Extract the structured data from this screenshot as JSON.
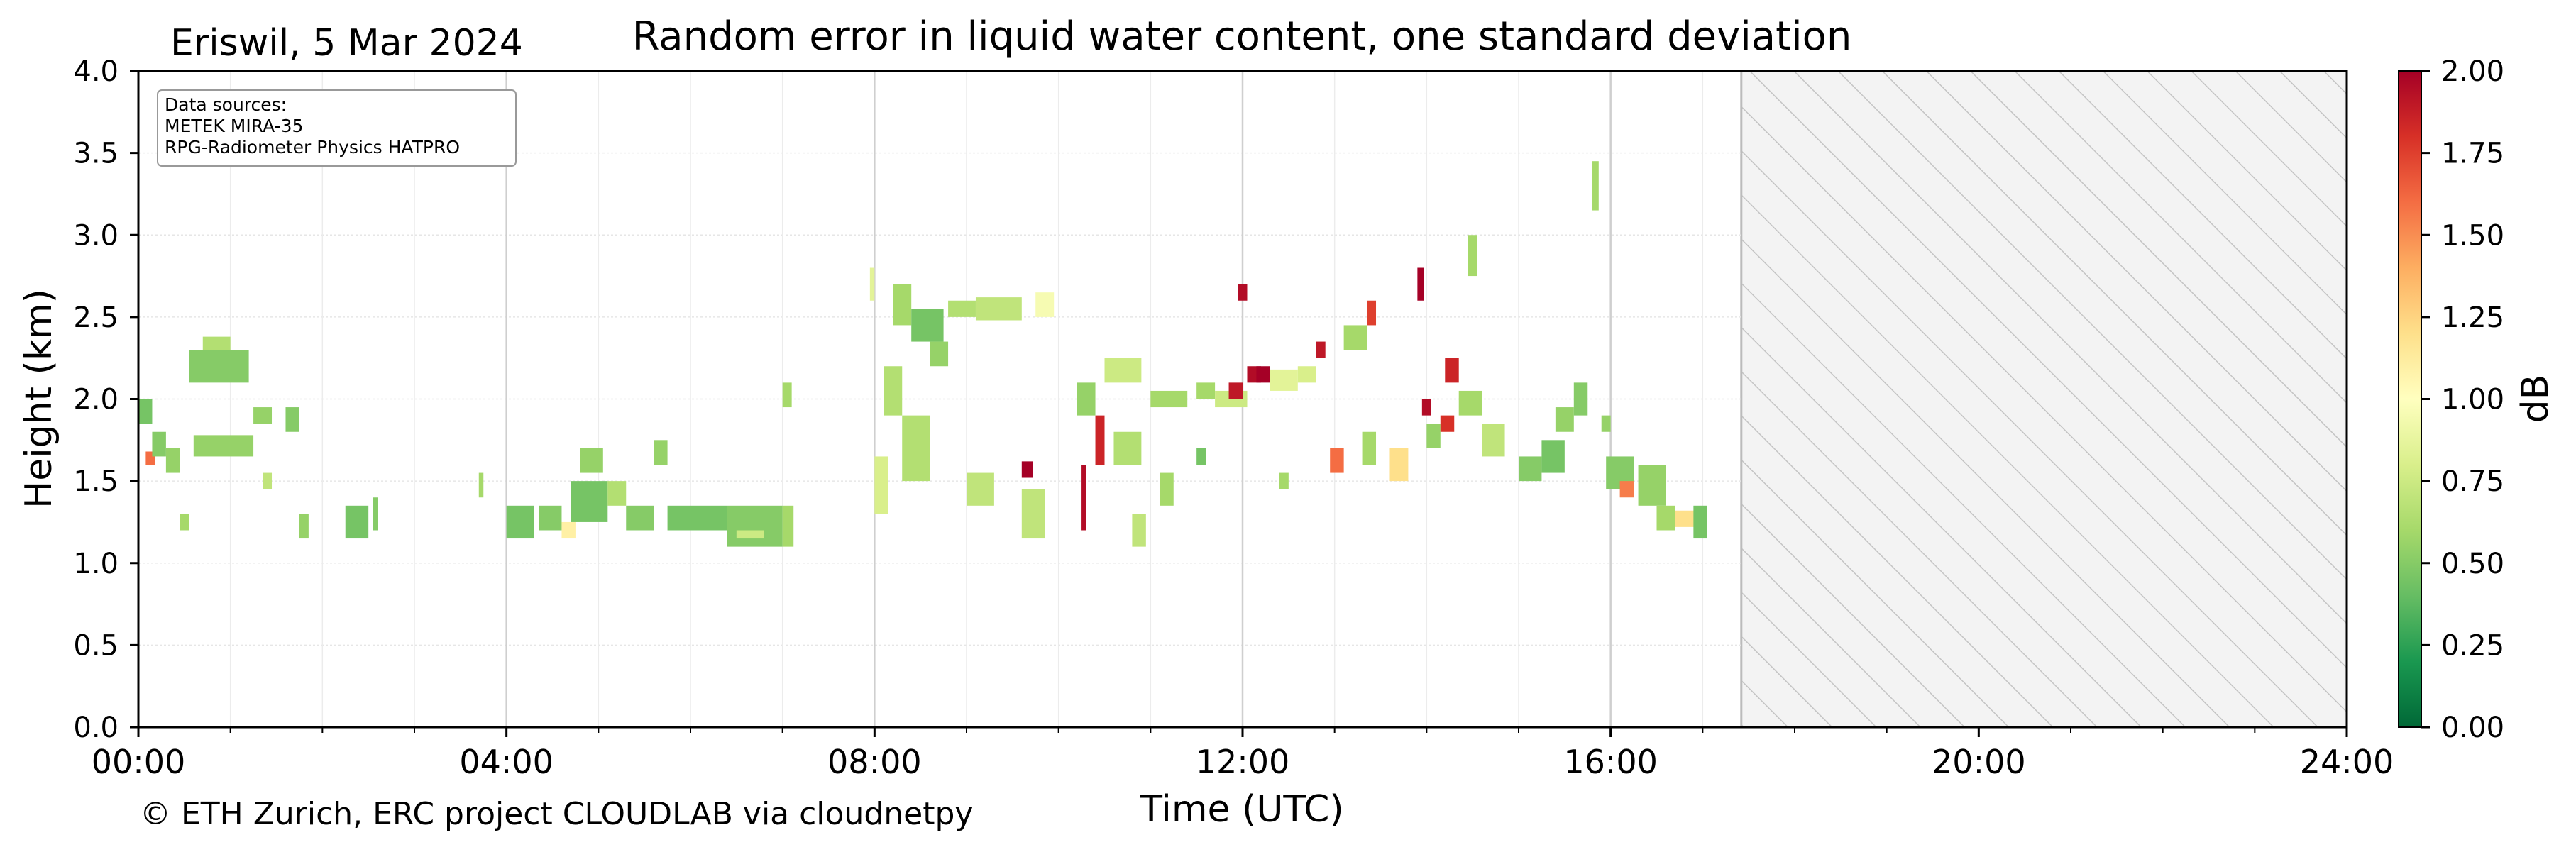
{
  "header": {
    "site_date": "Eriswil, 5 Mar 2024",
    "title": "Random error in liquid water content, one standard deviation"
  },
  "sources_box": {
    "heading": "Data sources:",
    "lines": [
      "METEK MIRA-35",
      "RPG-Radiometer Physics HATPRO"
    ]
  },
  "footer": {
    "copyright": "© ETH Zurich, ERC project CLOUDLAB via cloudnetpy"
  },
  "chart_data": {
    "type": "heatmap",
    "title": "Random error in liquid water content, one standard deviation",
    "xlabel": "Time (UTC)",
    "ylabel": "Height (km)",
    "xlim": [
      0,
      24
    ],
    "ylim": [
      0,
      4
    ],
    "x_ticks": [
      "00:00",
      "04:00",
      "08:00",
      "12:00",
      "16:00",
      "20:00",
      "24:00"
    ],
    "y_ticks": [
      "0.0",
      "0.5",
      "1.0",
      "1.5",
      "2.0",
      "2.5",
      "3.0",
      "3.5",
      "4.0"
    ],
    "colorbar": {
      "label": "dB",
      "range": [
        0,
        2
      ],
      "ticks": [
        "0.00",
        "0.25",
        "0.50",
        "0.75",
        "1.00",
        "1.25",
        "1.50",
        "1.75",
        "2.00"
      ],
      "colormap": "RdYlGn_r"
    },
    "no_data_after_hours": 17.42,
    "grid": true,
    "cells": [
      {
        "t0": 0.0,
        "t1": 0.15,
        "h0": 1.85,
        "h1": 2.0,
        "v": 0.45
      },
      {
        "t0": 0.08,
        "t1": 0.18,
        "h0": 1.6,
        "h1": 1.68,
        "v": 1.6
      },
      {
        "t0": 0.15,
        "t1": 0.3,
        "h0": 1.65,
        "h1": 1.8,
        "v": 0.5
      },
      {
        "t0": 0.3,
        "t1": 0.45,
        "h0": 1.55,
        "h1": 1.7,
        "v": 0.55
      },
      {
        "t0": 0.45,
        "t1": 0.55,
        "h0": 1.2,
        "h1": 1.3,
        "v": 0.6
      },
      {
        "t0": 0.55,
        "t1": 1.2,
        "h0": 2.1,
        "h1": 2.3,
        "v": 0.5
      },
      {
        "t0": 0.6,
        "t1": 1.25,
        "h0": 1.65,
        "h1": 1.78,
        "v": 0.55
      },
      {
        "t0": 0.7,
        "t1": 1.0,
        "h0": 2.3,
        "h1": 2.38,
        "v": 0.65
      },
      {
        "t0": 1.25,
        "t1": 1.45,
        "h0": 1.85,
        "h1": 1.95,
        "v": 0.55
      },
      {
        "t0": 1.35,
        "t1": 1.45,
        "h0": 1.45,
        "h1": 1.55,
        "v": 0.7
      },
      {
        "t0": 1.6,
        "t1": 1.75,
        "h0": 1.8,
        "h1": 1.95,
        "v": 0.5
      },
      {
        "t0": 1.75,
        "t1": 1.85,
        "h0": 1.15,
        "h1": 1.3,
        "v": 0.55
      },
      {
        "t0": 2.25,
        "t1": 2.5,
        "h0": 1.15,
        "h1": 1.35,
        "v": 0.45
      },
      {
        "t0": 2.55,
        "t1": 2.6,
        "h0": 1.2,
        "h1": 1.4,
        "v": 0.5
      },
      {
        "t0": 3.7,
        "t1": 3.75,
        "h0": 1.4,
        "h1": 1.55,
        "v": 0.6
      },
      {
        "t0": 4.0,
        "t1": 4.3,
        "h0": 1.15,
        "h1": 1.35,
        "v": 0.45
      },
      {
        "t0": 4.35,
        "t1": 4.6,
        "h0": 1.2,
        "h1": 1.35,
        "v": 0.5
      },
      {
        "t0": 4.6,
        "t1": 4.75,
        "h0": 1.15,
        "h1": 1.25,
        "v": 1.1
      },
      {
        "t0": 4.7,
        "t1": 5.1,
        "h0": 1.25,
        "h1": 1.5,
        "v": 0.45
      },
      {
        "t0": 4.8,
        "t1": 5.05,
        "h0": 1.55,
        "h1": 1.7,
        "v": 0.55
      },
      {
        "t0": 5.1,
        "t1": 5.3,
        "h0": 1.35,
        "h1": 1.5,
        "v": 0.65
      },
      {
        "t0": 5.3,
        "t1": 5.6,
        "h0": 1.2,
        "h1": 1.35,
        "v": 0.5
      },
      {
        "t0": 5.6,
        "t1": 5.75,
        "h0": 1.6,
        "h1": 1.75,
        "v": 0.55
      },
      {
        "t0": 5.75,
        "t1": 6.4,
        "h0": 1.2,
        "h1": 1.35,
        "v": 0.45
      },
      {
        "t0": 6.4,
        "t1": 7.0,
        "h0": 1.1,
        "h1": 1.35,
        "v": 0.5
      },
      {
        "t0": 6.5,
        "t1": 6.8,
        "h0": 1.15,
        "h1": 1.2,
        "v": 0.75
      },
      {
        "t0": 7.0,
        "t1": 7.12,
        "h0": 1.1,
        "h1": 1.35,
        "v": 0.6
      },
      {
        "t0": 7.0,
        "t1": 7.1,
        "h0": 1.95,
        "h1": 2.1,
        "v": 0.6
      },
      {
        "t0": 7.95,
        "t1": 8.0,
        "h0": 2.6,
        "h1": 2.8,
        "v": 0.85
      },
      {
        "t0": 8.0,
        "t1": 8.15,
        "h0": 1.3,
        "h1": 1.65,
        "v": 0.8
      },
      {
        "t0": 8.1,
        "t1": 8.3,
        "h0": 1.9,
        "h1": 2.2,
        "v": 0.65
      },
      {
        "t0": 8.2,
        "t1": 8.4,
        "h0": 2.45,
        "h1": 2.7,
        "v": 0.6
      },
      {
        "t0": 8.3,
        "t1": 8.6,
        "h0": 1.5,
        "h1": 1.9,
        "v": 0.65
      },
      {
        "t0": 8.4,
        "t1": 8.75,
        "h0": 2.35,
        "h1": 2.55,
        "v": 0.45
      },
      {
        "t0": 8.6,
        "t1": 8.8,
        "h0": 2.2,
        "h1": 2.35,
        "v": 0.55
      },
      {
        "t0": 8.8,
        "t1": 9.1,
        "h0": 2.5,
        "h1": 2.6,
        "v": 0.65
      },
      {
        "t0": 9.0,
        "t1": 9.3,
        "h0": 1.35,
        "h1": 1.55,
        "v": 0.7
      },
      {
        "t0": 9.1,
        "t1": 9.6,
        "h0": 2.48,
        "h1": 2.62,
        "v": 0.7
      },
      {
        "t0": 9.6,
        "t1": 9.72,
        "h0": 1.52,
        "h1": 1.62,
        "v": 2.0
      },
      {
        "t0": 9.6,
        "t1": 9.85,
        "h0": 1.15,
        "h1": 1.45,
        "v": 0.7
      },
      {
        "t0": 9.75,
        "t1": 9.95,
        "h0": 2.5,
        "h1": 2.65,
        "v": 0.95
      },
      {
        "t0": 10.2,
        "t1": 10.4,
        "h0": 1.9,
        "h1": 2.1,
        "v": 0.55
      },
      {
        "t0": 10.25,
        "t1": 10.3,
        "h0": 1.2,
        "h1": 1.6,
        "v": 1.95
      },
      {
        "t0": 10.4,
        "t1": 10.5,
        "h0": 1.6,
        "h1": 1.9,
        "v": 1.85
      },
      {
        "t0": 10.5,
        "t1": 10.9,
        "h0": 2.1,
        "h1": 2.25,
        "v": 0.75
      },
      {
        "t0": 10.6,
        "t1": 10.9,
        "h0": 1.6,
        "h1": 1.8,
        "v": 0.65
      },
      {
        "t0": 10.8,
        "t1": 10.95,
        "h0": 1.1,
        "h1": 1.3,
        "v": 0.7
      },
      {
        "t0": 11.0,
        "t1": 11.4,
        "h0": 1.95,
        "h1": 2.05,
        "v": 0.6
      },
      {
        "t0": 11.1,
        "t1": 11.25,
        "h0": 1.35,
        "h1": 1.55,
        "v": 0.6
      },
      {
        "t0": 11.5,
        "t1": 11.7,
        "h0": 2.0,
        "h1": 2.1,
        "v": 0.6
      },
      {
        "t0": 11.5,
        "t1": 11.6,
        "h0": 1.6,
        "h1": 1.7,
        "v": 0.45
      },
      {
        "t0": 11.7,
        "t1": 12.05,
        "h0": 1.95,
        "h1": 2.05,
        "v": 0.75
      },
      {
        "t0": 11.85,
        "t1": 12.0,
        "h0": 2.0,
        "h1": 2.1,
        "v": 1.9
      },
      {
        "t0": 11.95,
        "t1": 12.05,
        "h0": 2.6,
        "h1": 2.7,
        "v": 1.95
      },
      {
        "t0": 12.05,
        "t1": 12.2,
        "h0": 2.1,
        "h1": 2.2,
        "v": 1.95
      },
      {
        "t0": 12.15,
        "t1": 12.3,
        "h0": 2.1,
        "h1": 2.2,
        "v": 2.0
      },
      {
        "t0": 12.3,
        "t1": 12.6,
        "h0": 2.05,
        "h1": 2.18,
        "v": 0.85
      },
      {
        "t0": 12.4,
        "t1": 12.5,
        "h0": 1.45,
        "h1": 1.55,
        "v": 0.6
      },
      {
        "t0": 12.6,
        "t1": 12.8,
        "h0": 2.1,
        "h1": 2.2,
        "v": 0.8
      },
      {
        "t0": 12.8,
        "t1": 12.9,
        "h0": 2.25,
        "h1": 2.35,
        "v": 1.9
      },
      {
        "t0": 12.95,
        "t1": 13.1,
        "h0": 1.55,
        "h1": 1.7,
        "v": 1.6
      },
      {
        "t0": 13.1,
        "t1": 13.35,
        "h0": 2.3,
        "h1": 2.45,
        "v": 0.6
      },
      {
        "t0": 13.3,
        "t1": 13.45,
        "h0": 1.6,
        "h1": 1.8,
        "v": 0.6
      },
      {
        "t0": 13.35,
        "t1": 13.45,
        "h0": 2.45,
        "h1": 2.6,
        "v": 1.75
      },
      {
        "t0": 13.6,
        "t1": 13.8,
        "h0": 1.5,
        "h1": 1.7,
        "v": 1.2
      },
      {
        "t0": 13.9,
        "t1": 13.97,
        "h0": 2.6,
        "h1": 2.8,
        "v": 2.0
      },
      {
        "t0": 13.95,
        "t1": 14.05,
        "h0": 1.9,
        "h1": 2.0,
        "v": 1.95
      },
      {
        "t0": 14.0,
        "t1": 14.15,
        "h0": 1.7,
        "h1": 1.85,
        "v": 0.55
      },
      {
        "t0": 14.15,
        "t1": 14.3,
        "h0": 1.8,
        "h1": 1.9,
        "v": 1.8
      },
      {
        "t0": 14.2,
        "t1": 14.35,
        "h0": 2.1,
        "h1": 2.25,
        "v": 1.85
      },
      {
        "t0": 14.35,
        "t1": 14.6,
        "h0": 1.9,
        "h1": 2.05,
        "v": 0.6
      },
      {
        "t0": 14.45,
        "t1": 14.55,
        "h0": 2.75,
        "h1": 3.0,
        "v": 0.6
      },
      {
        "t0": 14.6,
        "t1": 14.85,
        "h0": 1.65,
        "h1": 1.85,
        "v": 0.7
      },
      {
        "t0": 15.0,
        "t1": 15.25,
        "h0": 1.5,
        "h1": 1.65,
        "v": 0.5
      },
      {
        "t0": 15.25,
        "t1": 15.5,
        "h0": 1.55,
        "h1": 1.75,
        "v": 0.45
      },
      {
        "t0": 15.4,
        "t1": 15.6,
        "h0": 1.8,
        "h1": 1.95,
        "v": 0.55
      },
      {
        "t0": 15.6,
        "t1": 15.75,
        "h0": 1.9,
        "h1": 2.1,
        "v": 0.5
      },
      {
        "t0": 15.8,
        "t1": 15.87,
        "h0": 3.15,
        "h1": 3.45,
        "v": 0.6
      },
      {
        "t0": 15.9,
        "t1": 16.0,
        "h0": 1.8,
        "h1": 1.9,
        "v": 0.55
      },
      {
        "t0": 15.95,
        "t1": 16.25,
        "h0": 1.45,
        "h1": 1.65,
        "v": 0.5
      },
      {
        "t0": 16.1,
        "t1": 16.25,
        "h0": 1.4,
        "h1": 1.5,
        "v": 1.55
      },
      {
        "t0": 16.3,
        "t1": 16.6,
        "h0": 1.35,
        "h1": 1.6,
        "v": 0.55
      },
      {
        "t0": 16.5,
        "t1": 16.7,
        "h0": 1.2,
        "h1": 1.35,
        "v": 0.6
      },
      {
        "t0": 16.7,
        "t1": 16.95,
        "h0": 1.22,
        "h1": 1.32,
        "v": 1.2
      },
      {
        "t0": 16.9,
        "t1": 17.05,
        "h0": 1.15,
        "h1": 1.35,
        "v": 0.45
      }
    ]
  }
}
